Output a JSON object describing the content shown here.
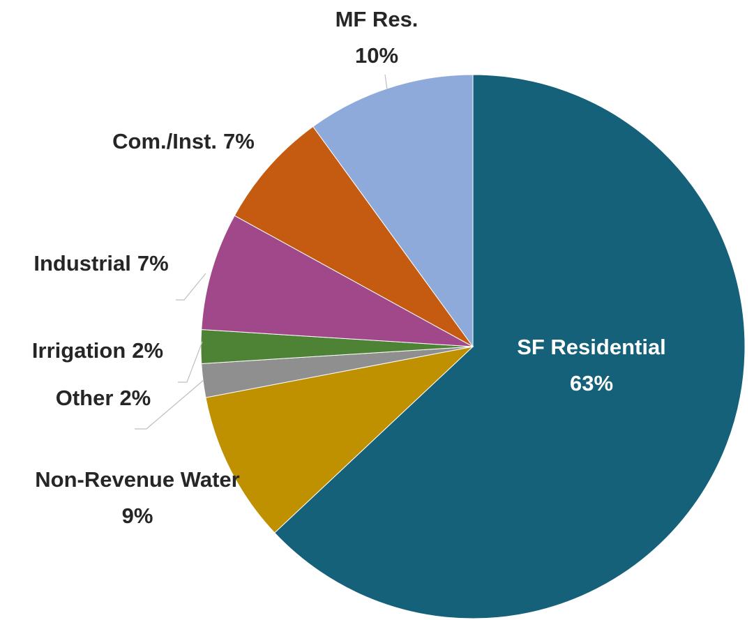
{
  "chart_data": {
    "type": "pie",
    "categories": [
      "SF Residential",
      "Non-Revenue Water",
      "Other",
      "Irrigation",
      "Industrial",
      "Com./Inst.",
      "MF Res."
    ],
    "values": [
      63,
      9,
      2,
      2,
      7,
      7,
      10
    ],
    "value_labels": [
      "63%",
      "9%",
      "2%",
      "2%",
      "7%",
      "7%",
      "10%"
    ],
    "colors": [
      "#15617a",
      "#bf9000",
      "#8f8f8f",
      "#4e8235",
      "#a0488a",
      "#c55a11",
      "#8eaadb"
    ]
  }
}
